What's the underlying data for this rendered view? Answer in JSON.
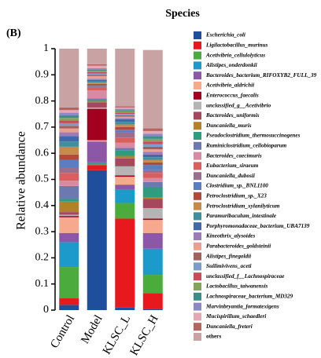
{
  "chart_data": {
    "type": "stacked_bar",
    "title": "Species",
    "panel_label": "(B)",
    "y_label": "Relative abundance",
    "categories": [
      "Control",
      "Model",
      "KLSC_L",
      "KLSC_H"
    ],
    "ylim": [
      0,
      1
    ],
    "yticks": [
      0,
      0.1,
      0.2,
      0.3,
      0.4,
      0.5,
      0.6,
      0.7,
      0.8,
      0.9,
      1
    ],
    "series": [
      {
        "name": "Escherichia_coli",
        "color": "#1f4e9c",
        "values": [
          0.02,
          0.535,
          0.01,
          0.005
        ]
      },
      {
        "name": "Ligilactobacillus_murinus",
        "color": "#e8191c",
        "values": [
          0.025,
          0.02,
          0.34,
          0.06
        ]
      },
      {
        "name": "Acetivibrio_cellulolyticus",
        "color": "#4bab3c",
        "values": [
          0.12,
          0.005,
          0.06,
          0.07
        ]
      },
      {
        "name": "Alistipes_onderdonkii",
        "color": "#1c9ac9",
        "values": [
          0.095,
          0.005,
          0.05,
          0.1
        ]
      },
      {
        "name": "Bacteroides_bacterium_RIFOXYB2_FULL_39",
        "color": "#8b57a6",
        "values": [
          0.035,
          0.08,
          0.02,
          0.06
        ]
      },
      {
        "name": "Acetivibrio_aldrichii",
        "color": "#f6a98c",
        "values": [
          0.06,
          0.005,
          0.03,
          0.05
        ]
      },
      {
        "name": "Enterococcus_faecalis",
        "color": "#a3001f",
        "values": [
          0.005,
          0.12,
          0.005,
          0.005
        ]
      },
      {
        "name": "unclassified_g__Acetivibrio",
        "color": "#b5b5b5",
        "values": [
          0.005,
          0.005,
          0.035,
          0.04
        ]
      },
      {
        "name": "Bacteroides_uniformis",
        "color": "#a5485d",
        "values": [
          0.01,
          0.02,
          0.03,
          0.035
        ]
      },
      {
        "name": "Duncaniella_muris",
        "color": "#b2812a",
        "values": [
          0.04,
          0.005,
          0.01,
          0.005
        ]
      },
      {
        "name": "Pseudoclostridium_thermosuccinogenes",
        "color": "#2e9c7f",
        "values": [
          0.01,
          0.005,
          0.02,
          0.04
        ]
      },
      {
        "name": "Ruminiclostridium_cellobioparum",
        "color": "#6c79b0",
        "values": [
          0.05,
          0.005,
          0.01,
          0.02
        ]
      },
      {
        "name": "Bacteroides_caecimuris",
        "color": "#d98aa3",
        "values": [
          0.02,
          0.03,
          0.02,
          0.015
        ]
      },
      {
        "name": "Eubacterium_siraeum",
        "color": "#d95f5f",
        "values": [
          0.03,
          0.01,
          0.02,
          0.02
        ]
      },
      {
        "name": "Duncaniella_dubosii",
        "color": "#9a6f8d",
        "values": [
          0.02,
          0.005,
          0.02,
          0.01
        ]
      },
      {
        "name": "Clostridium_sp._BNL1100",
        "color": "#5b7ec2",
        "values": [
          0.03,
          0.005,
          0.01,
          0.02
        ]
      },
      {
        "name": "Petroclostridium_sp._X23",
        "color": "#b04a3c",
        "values": [
          0.02,
          0.005,
          0.01,
          0.01
        ]
      },
      {
        "name": "Petroclostridium_xylanilyticum",
        "color": "#c78a4a",
        "values": [
          0.03,
          0.005,
          0.01,
          0.01
        ]
      },
      {
        "name": "Paramuribaculum_intestinale",
        "color": "#3f8f9c",
        "values": [
          0.02,
          0.005,
          0.01,
          0.01
        ]
      },
      {
        "name": "Porphyromonadaceae_bacterium_UBA7139",
        "color": "#4169a8",
        "values": [
          0.02,
          0.005,
          0.01,
          0.01
        ]
      },
      {
        "name": "Kineothrix_alysoides",
        "color": "#9c7cb6",
        "values": [
          0.015,
          0.005,
          0.005,
          0.01
        ]
      },
      {
        "name": "Parabacteroides_goldsteinii",
        "color": "#e8a08f",
        "values": [
          0.015,
          0.01,
          0.005,
          0.01
        ]
      },
      {
        "name": "Alistipes_finegoldii",
        "color": "#a06060",
        "values": [
          0.01,
          0.005,
          0.005,
          0.01
        ]
      },
      {
        "name": "Suilimivivens_aceti",
        "color": "#7e9cc9",
        "values": [
          0.01,
          0.005,
          0.005,
          0.01
        ]
      },
      {
        "name": "unclassified_f__Lachnospiraceae",
        "color": "#cc4b5a",
        "values": [
          0.01,
          0.005,
          0.005,
          0.01
        ]
      },
      {
        "name": "Lactobacillus_taiwanensis",
        "color": "#85a35a",
        "values": [
          0.01,
          0.005,
          0.005,
          0.01
        ]
      },
      {
        "name": "Lachnospiraceae_bacterium_MD329",
        "color": "#3d8d8a",
        "values": [
          0.01,
          0.005,
          0.005,
          0.01
        ]
      },
      {
        "name": "Marvinbryantia_formatexigens",
        "color": "#8c88c4",
        "values": [
          0.01,
          0.005,
          0.005,
          0.01
        ]
      },
      {
        "name": "Mucispirillum_schaedleri",
        "color": "#e6a7b5",
        "values": [
          0.01,
          0.01,
          0.005,
          0.01
        ]
      },
      {
        "name": "Duncaniella_freteri",
        "color": "#b3645f",
        "values": [
          0.01,
          0.005,
          0.005,
          0.01
        ]
      },
      {
        "name": "others",
        "color": "#c9a2a4",
        "values": [
          0.225,
          0.06,
          0.22,
          0.3
        ]
      }
    ]
  }
}
